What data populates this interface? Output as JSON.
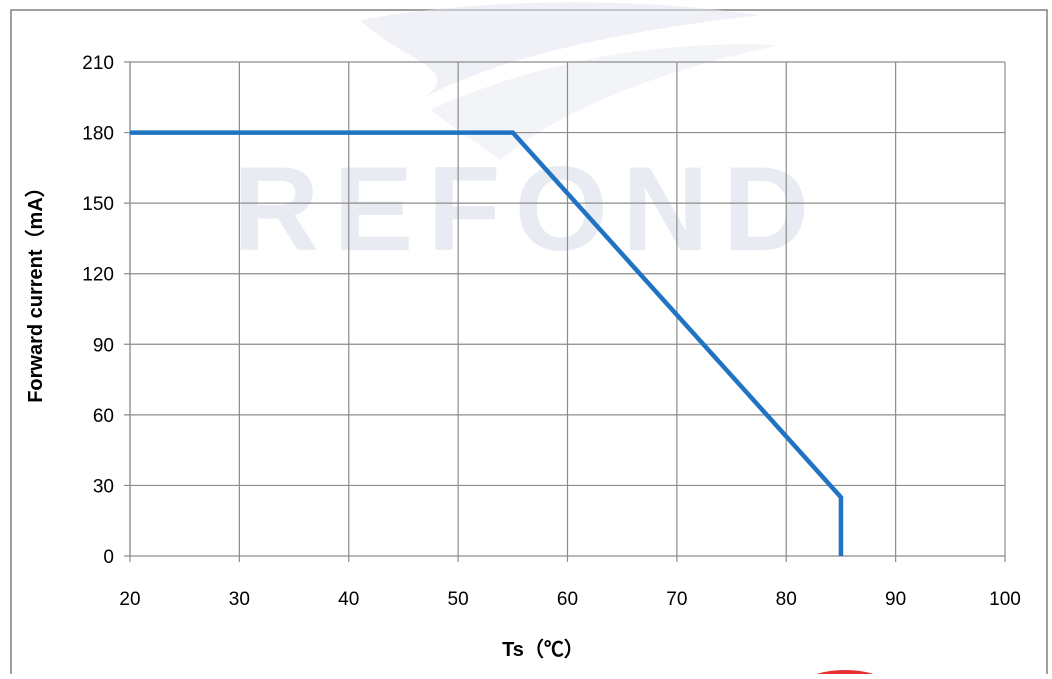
{
  "chart_data": {
    "type": "line",
    "xlabel": "Ts（℃）",
    "ylabel": "Forward current（mA）",
    "xlim": [
      20,
      100
    ],
    "ylim": [
      0,
      210
    ],
    "xticks": [
      20,
      30,
      40,
      50,
      60,
      70,
      80,
      90,
      100
    ],
    "yticks": [
      0,
      30,
      60,
      90,
      120,
      150,
      180,
      210
    ],
    "grid": true,
    "series": [
      {
        "color": "#1f73c2",
        "x": [
          20,
          55,
          85,
          85
        ],
        "y": [
          180,
          180,
          25,
          0
        ]
      }
    ]
  },
  "watermark": {
    "text": "REFOND",
    "color": "#d7dde8"
  }
}
